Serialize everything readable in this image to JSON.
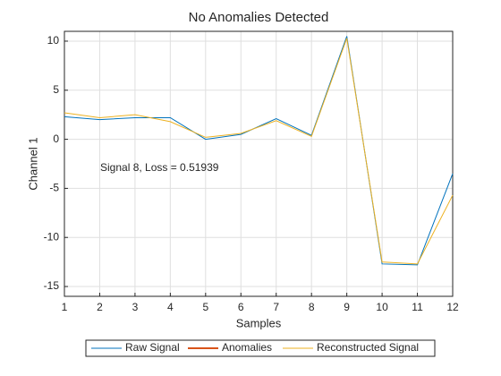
{
  "chart_data": {
    "type": "line",
    "title": "No Anomalies Detected",
    "x_label": "Samples",
    "y_label": "Channel 1",
    "annotation": "Signal 8, Loss = 0.51939",
    "x": [
      1,
      2,
      3,
      4,
      5,
      6,
      7,
      8,
      9,
      10,
      11,
      12
    ],
    "series": [
      {
        "name": "Raw Signal",
        "color": "#0072BD",
        "values": [
          2.3,
          2.0,
          2.2,
          2.2,
          0.0,
          0.5,
          2.1,
          0.4,
          10.5,
          -12.7,
          -12.8,
          -3.5
        ]
      },
      {
        "name": "Anomalies",
        "color": "#D95319",
        "values": [
          null,
          null,
          null,
          null,
          null,
          null,
          null,
          null,
          null,
          null,
          null,
          null
        ]
      },
      {
        "name": "Reconstructed Signal",
        "color": "#EDB120",
        "values": [
          2.7,
          2.2,
          2.5,
          1.8,
          0.2,
          0.6,
          1.9,
          0.3,
          10.3,
          -12.5,
          -12.7,
          -5.7
        ]
      }
    ],
    "xlim": [
      1,
      12
    ],
    "xticks": [
      1,
      2,
      3,
      4,
      5,
      6,
      7,
      8,
      9,
      10,
      11,
      12
    ],
    "ylim": [
      -16,
      11
    ],
    "yticks": [
      -15,
      -10,
      -5,
      0,
      5,
      10
    ],
    "grid": true,
    "legend": "bottom"
  }
}
